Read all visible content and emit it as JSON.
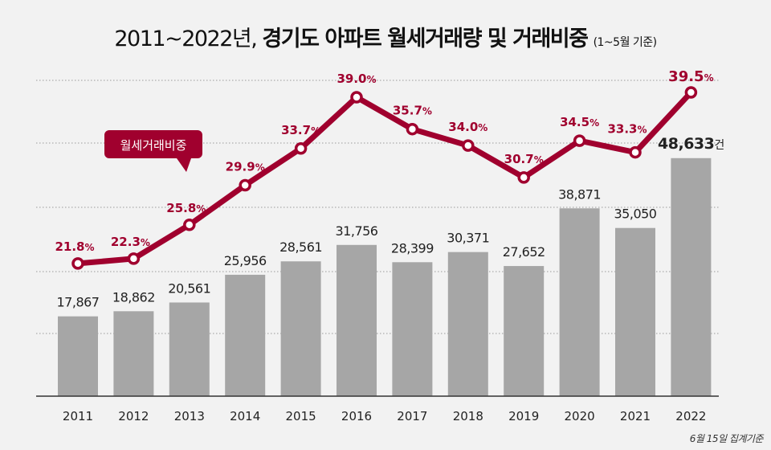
{
  "title": {
    "main_regular": "2011~2022년, ",
    "main_bold": "경기도 아파트 월세거래량 및 거래비중",
    "sub": "(1~5월 기준)"
  },
  "note": "6월 15일 집계기준",
  "chart_data": {
    "type": "bar+line",
    "categories": [
      "2011",
      "2012",
      "2013",
      "2014",
      "2015",
      "2016",
      "2017",
      "2018",
      "2019",
      "2020",
      "2021",
      "2022"
    ],
    "series": [
      {
        "type": "bar",
        "values": [
          17867,
          18862,
          20561,
          25956,
          28561,
          31756,
          28399,
          30371,
          27652,
          38871,
          35050,
          48633
        ],
        "labels": [
          "17,867",
          "18,862",
          "20,561",
          "25,956",
          "28,561",
          "31,756",
          "28,399",
          "30,371",
          "27,652",
          "38,871",
          "35,050",
          "48,633"
        ],
        "last_label_unit": "건",
        "color": "#a6a6a6"
      },
      {
        "type": "line",
        "name": "월세거래비중",
        "values": [
          21.8,
          22.3,
          25.8,
          29.9,
          33.7,
          39.0,
          35.7,
          34.0,
          30.7,
          34.5,
          33.3,
          39.5
        ],
        "unit": "%",
        "color": "#a0002e"
      }
    ],
    "grid": "horizontal dotted",
    "legend": "callout"
  }
}
